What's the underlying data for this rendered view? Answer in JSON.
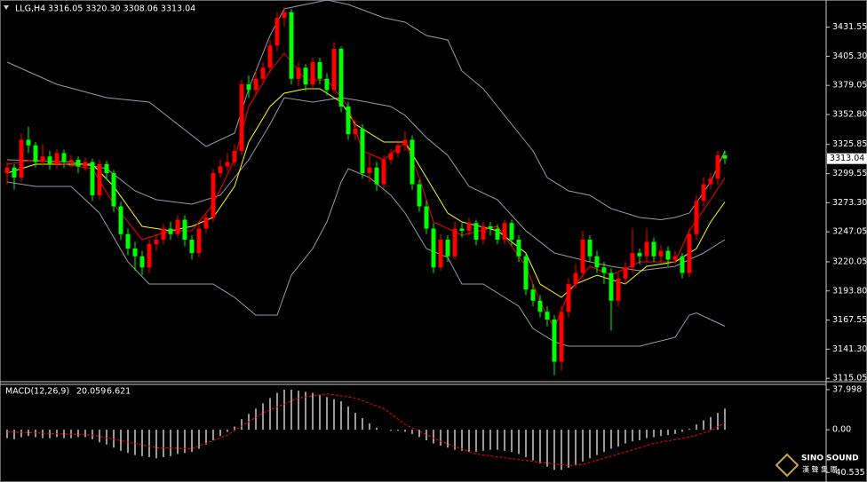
{
  "chart_data": [
    {
      "type": "candlestick",
      "title": "LLG,H4",
      "quote": "3316.05 3320.30 3308.06 3313.04",
      "up_color": "#ff0000",
      "down_color": "#00ff00",
      "open": [
        3300,
        3305,
        3296,
        3330,
        3325,
        3310,
        3315,
        3308,
        3318,
        3310,
        3312,
        3306,
        3310,
        3280,
        3308,
        3300,
        3270,
        3245,
        3232,
        3225,
        3215,
        3236,
        3240,
        3250,
        3245,
        3258,
        3240,
        3228,
        3250,
        3260,
        3300,
        3306,
        3310,
        3320,
        3380,
        3375,
        3385,
        3395,
        3415,
        3440,
        3445,
        3385,
        3395,
        3380,
        3400,
        3385,
        3375,
        3412,
        3360,
        3335,
        3340,
        3300,
        3305,
        3290,
        3312,
        3318,
        3325,
        3330,
        3290,
        3270,
        3250,
        3215,
        3240,
        3225,
        3250,
        3248,
        3255,
        3240,
        3252,
        3250,
        3240,
        3255,
        3240,
        3225,
        3195,
        3185,
        3175,
        3168,
        3130,
        3175,
        3200,
        3210,
        3240,
        3225,
        3215,
        3210,
        3185,
        3205,
        3215,
        3228,
        3225,
        3238,
        3225,
        3230,
        3222,
        3225,
        3210,
        3245,
        3275,
        3290,
        3295,
        3316.05
      ],
      "high": [
        3310,
        3308,
        3336,
        3342,
        3328,
        3326,
        3320,
        3322,
        3321,
        3316,
        3315,
        3314,
        3313,
        3312,
        3311,
        3303,
        3274,
        3250,
        3238,
        3230,
        3240,
        3245,
        3254,
        3256,
        3262,
        3262,
        3244,
        3254,
        3265,
        3304,
        3312,
        3318,
        3326,
        3384,
        3388,
        3392,
        3400,
        3420,
        3445,
        3450,
        3448,
        3400,
        3398,
        3404,
        3404,
        3390,
        3418,
        3414,
        3364,
        3348,
        3344,
        3316,
        3310,
        3316,
        3322,
        3330,
        3338,
        3334,
        3294,
        3275,
        3255,
        3245,
        3244,
        3256,
        3255,
        3260,
        3258,
        3256,
        3256,
        3254,
        3258,
        3258,
        3244,
        3228,
        3200,
        3190,
        3180,
        3172,
        3180,
        3205,
        3218,
        3248,
        3244,
        3230,
        3220,
        3214,
        3210,
        3220,
        3250,
        3232,
        3250,
        3242,
        3235,
        3234,
        3230,
        3228,
        3250,
        3280,
        3296,
        3300,
        3320,
        3320.3
      ],
      "low": [
        3290,
        3285,
        3292,
        3318,
        3305,
        3306,
        3303,
        3304,
        3305,
        3305,
        3300,
        3302,
        3275,
        3276,
        3294,
        3265,
        3240,
        3226,
        3212,
        3208,
        3210,
        3230,
        3236,
        3240,
        3242,
        3234,
        3222,
        3224,
        3246,
        3256,
        3296,
        3302,
        3306,
        3316,
        3368,
        3370,
        3380,
        3390,
        3410,
        3432,
        3380,
        3378,
        3374,
        3376,
        3380,
        3370,
        3372,
        3355,
        3330,
        3330,
        3295,
        3292,
        3284,
        3286,
        3308,
        3314,
        3320,
        3285,
        3265,
        3245,
        3210,
        3212,
        3220,
        3222,
        3242,
        3244,
        3235,
        3236,
        3244,
        3236,
        3236,
        3235,
        3220,
        3190,
        3180,
        3170,
        3162,
        3118,
        3122,
        3170,
        3196,
        3205,
        3220,
        3210,
        3200,
        3158,
        3180,
        3200,
        3210,
        3218,
        3220,
        3220,
        3220,
        3216,
        3218,
        3205,
        3206,
        3240,
        3270,
        3285,
        3290,
        3308.06
      ],
      "close": [
        3305,
        3296,
        3330,
        3325,
        3310,
        3315,
        3308,
        3318,
        3310,
        3312,
        3306,
        3310,
        3280,
        3308,
        3300,
        3270,
        3245,
        3232,
        3225,
        3215,
        3236,
        3240,
        3250,
        3245,
        3258,
        3240,
        3228,
        3250,
        3260,
        3300,
        3306,
        3310,
        3320,
        3380,
        3375,
        3385,
        3395,
        3415,
        3440,
        3445,
        3385,
        3395,
        3380,
        3400,
        3385,
        3375,
        3412,
        3360,
        3335,
        3340,
        3300,
        3305,
        3290,
        3312,
        3318,
        3325,
        3330,
        3290,
        3270,
        3250,
        3215,
        3240,
        3225,
        3250,
        3248,
        3255,
        3240,
        3252,
        3250,
        3240,
        3255,
        3240,
        3225,
        3195,
        3185,
        3175,
        3168,
        3130,
        3175,
        3200,
        3210,
        3240,
        3225,
        3215,
        3210,
        3185,
        3205,
        3215,
        3228,
        3225,
        3238,
        3225,
        3230,
        3222,
        3225,
        3210,
        3245,
        3275,
        3290,
        3295,
        3316.05,
        3313.04
      ],
      "lines": [
        {
          "color": "#9a9aaa",
          "x": [
            0,
            7,
            14,
            20,
            24,
            28,
            32,
            34,
            37,
            39,
            42,
            45,
            48,
            53,
            56,
            59,
            62,
            64,
            67,
            69,
            71,
            74,
            76,
            79,
            82,
            85,
            89,
            92,
            94,
            96,
            99,
            101
          ],
          "values": [
            3400,
            3380,
            3368,
            3364,
            3344,
            3324,
            3336,
            3376,
            3424,
            3448,
            3452,
            3456,
            3452,
            3440,
            3436,
            3424,
            3420,
            3392,
            3376,
            3360,
            3344,
            3320,
            3296,
            3284,
            3280,
            3268,
            3260,
            3258,
            3260,
            3264,
            3292,
            3320
          ]
        },
        {
          "color": "#9a9aaa",
          "x": [
            0,
            4,
            9,
            13,
            17,
            20,
            25,
            29,
            32,
            35,
            38,
            40,
            43,
            45,
            47,
            48,
            51,
            54,
            56,
            59,
            62,
            64,
            67,
            69,
            72,
            74,
            77,
            79,
            84,
            89,
            94,
            96,
            97,
            99,
            101
          ],
          "values": [
            3292,
            3288,
            3288,
            3264,
            3220,
            3200,
            3200,
            3200,
            3188,
            3172,
            3172,
            3208,
            3232,
            3256,
            3292,
            3304,
            3296,
            3280,
            3264,
            3232,
            3224,
            3200,
            3200,
            3192,
            3180,
            3160,
            3148,
            3144,
            3144,
            3144,
            3152,
            3172,
            3174,
            3168,
            3162
          ]
        },
        {
          "color": "#9a9aaa",
          "x": [
            0,
            9,
            14,
            18,
            21,
            26,
            30,
            34,
            37,
            39,
            43,
            47,
            49,
            54,
            56,
            59,
            62,
            65,
            69,
            73,
            77,
            82,
            85,
            89,
            94,
            98,
            101
          ],
          "values": [
            3312,
            3310,
            3304,
            3284,
            3276,
            3272,
            3280,
            3312,
            3344,
            3368,
            3364,
            3368,
            3366,
            3360,
            3352,
            3332,
            3316,
            3288,
            3276,
            3248,
            3228,
            3220,
            3216,
            3212,
            3216,
            3228,
            3240
          ]
        },
        {
          "color": "#ffff00",
          "x": [
            0,
            4,
            12,
            15,
            19,
            23,
            26,
            29,
            32,
            34,
            37,
            39,
            42,
            44,
            47,
            49,
            53,
            56,
            59,
            62,
            64,
            69,
            73,
            75,
            78,
            80,
            83,
            87,
            90,
            94,
            97,
            99,
            101
          ],
          "values": [
            3300,
            3308,
            3308,
            3288,
            3252,
            3248,
            3252,
            3260,
            3288,
            3328,
            3360,
            3372,
            3376,
            3376,
            3364,
            3344,
            3328,
            3328,
            3296,
            3264,
            3256,
            3248,
            3228,
            3200,
            3188,
            3200,
            3208,
            3200,
            3216,
            3220,
            3232,
            3256,
            3274
          ]
        },
        {
          "color": "#ff0000",
          "x": [
            0,
            4,
            12,
            15,
            19,
            23,
            26,
            29,
            32,
            34,
            37,
            39,
            42,
            45,
            48,
            50,
            53,
            56,
            58,
            60,
            64,
            69,
            73,
            75,
            77,
            79,
            82,
            85,
            89,
            94,
            96,
            99,
            101
          ],
          "values": [
            3308,
            3312,
            3304,
            3272,
            3240,
            3248,
            3248,
            3272,
            3312,
            3360,
            3392,
            3408,
            3384,
            3384,
            3360,
            3320,
            3312,
            3328,
            3296,
            3256,
            3244,
            3252,
            3216,
            3184,
            3160,
            3192,
            3216,
            3208,
            3220,
            3220,
            3248,
            3276,
            3296
          ]
        }
      ],
      "ylim": [
        3112,
        3456
      ],
      "yticks": [
        3431.55,
        {
          "value": 3405.3,
          "label": "3405.30"
        },
        3379.05,
        {
          "value": 3352.8,
          "label": "3352.80"
        },
        3325.85,
        3299.55,
        {
          "value": 3273.3,
          "label": "3273.30"
        },
        3247.05,
        3220.05,
        {
          "value": 3193.8,
          "label": "3193.80"
        },
        3167.55,
        {
          "value": 3141.3,
          "label": "3141.30"
        },
        3115.05
      ]
    },
    {
      "type": "macd",
      "title": "MACD(12,26,9)",
      "series": [
        {
          "color": "#ffffff",
          "values": [
            -8,
            -9,
            -7,
            -6,
            -7,
            -8,
            -8,
            -7,
            -8,
            -8,
            -7,
            -7,
            -9,
            -12,
            -14,
            -17,
            -20,
            -22,
            -24,
            -25,
            -26,
            -27,
            -26,
            -25,
            -23,
            -22,
            -21,
            -18,
            -14,
            -10,
            -6,
            -2,
            3,
            10,
            15,
            20,
            25,
            30,
            35,
            38,
            38,
            37,
            36,
            35,
            33,
            31,
            29,
            27,
            22,
            16,
            11,
            6,
            2,
            0,
            -1,
            -1,
            -2,
            -4,
            -7,
            -10,
            -13,
            -15,
            -17,
            -19,
            -20,
            -21,
            -21,
            -20,
            -19,
            -19,
            -20,
            -21,
            -23,
            -26,
            -29,
            -32,
            -35,
            -38,
            -38,
            -36,
            -33,
            -30,
            -27,
            -24,
            -21,
            -18,
            -16,
            -13,
            -11,
            -10,
            -8,
            -7,
            -6,
            -5,
            -4,
            -2,
            1,
            5,
            9,
            12,
            16,
            20.059
          ]
        },
        {
          "color": "#ff0000",
          "x": [
            0,
            12,
            21,
            26,
            31,
            36,
            41,
            45,
            49,
            53,
            56,
            61,
            66,
            74,
            79,
            81,
            86,
            91,
            96,
            99,
            101
          ],
          "values": [
            -2,
            -5,
            -17,
            -18,
            -5,
            16,
            30,
            34,
            30,
            20,
            5,
            -11,
            -23,
            -30,
            -34,
            -33,
            -23,
            -13,
            -7,
            -1,
            6.621
          ]
        }
      ],
      "ylim": [
        -47,
        43
      ],
      "yticks": [
        37.998,
        {
          "value": 0,
          "label": "0.00"
        },
        -40.535
      ]
    }
  ],
  "watermark": {
    "brand": "SINO SOUND",
    "subtitle": "漢 聲 集 團"
  }
}
